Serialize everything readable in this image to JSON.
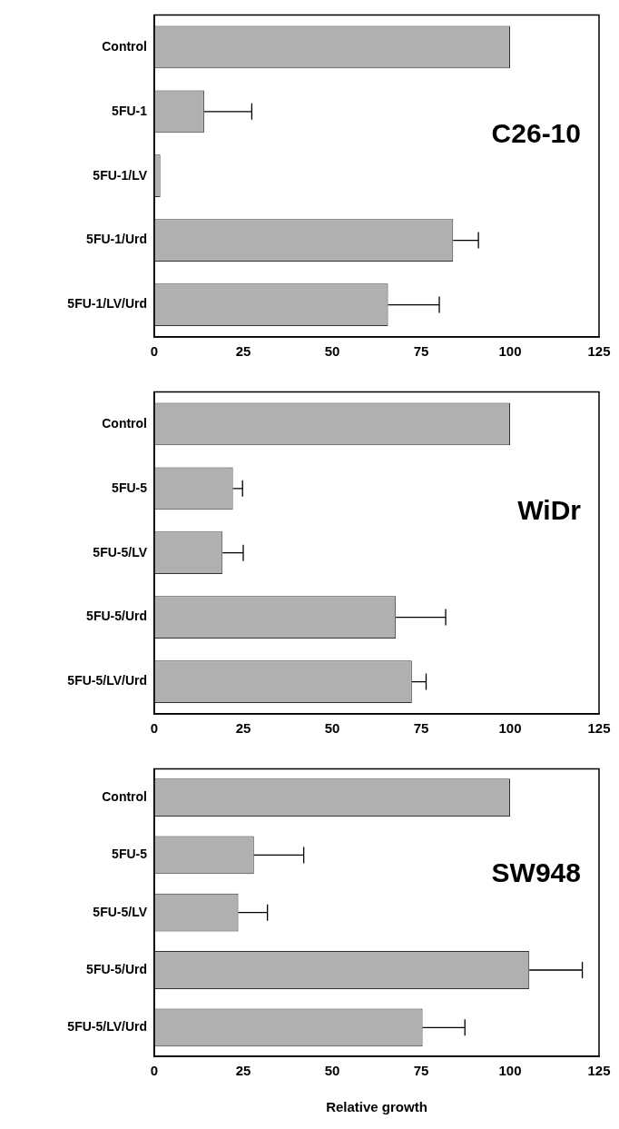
{
  "chart_data": [
    {
      "type": "bar",
      "orientation": "horizontal",
      "title": "C26-10",
      "categories": [
        "Control",
        "5FU-1",
        "5FU-1/LV",
        "5FU-1/Urd",
        "5FU-1/LV/Urd"
      ],
      "values": [
        100,
        14,
        1.7,
        84,
        65.7
      ],
      "errors": [
        null,
        [
          14,
          27.4
        ],
        null,
        [
          84,
          91.1
        ],
        [
          65.7,
          80.1
        ]
      ],
      "color": "#b0b0b0",
      "xlim": [
        0,
        125
      ],
      "xticks": [
        0,
        25,
        50,
        75,
        100,
        125
      ],
      "grid": false,
      "legend": false
    },
    {
      "type": "bar",
      "orientation": "horizontal",
      "title": "WiDr",
      "categories": [
        "Control",
        "5FU-5",
        "5FU-5/LV",
        "5FU-5/Urd",
        "5FU-5/LV/Urd"
      ],
      "values": [
        100,
        22.1,
        19.2,
        67.9,
        72.4
      ],
      "errors": [
        null,
        [
          22.1,
          24.8
        ],
        [
          19.2,
          25
        ],
        [
          67.9,
          81.9
        ],
        [
          72.4,
          76.4
        ]
      ],
      "color": "#b0b0b0",
      "xlim": [
        0,
        125
      ],
      "xticks": [
        0,
        25,
        50,
        75,
        100,
        125
      ],
      "grid": false,
      "legend": false
    },
    {
      "type": "bar",
      "orientation": "horizontal",
      "title": "SW948",
      "xlabel": "Relative growth",
      "categories": [
        "Control",
        "5FU-5",
        "5FU-5/LV",
        "5FU-5/Urd",
        "5FU-5/LV/Urd"
      ],
      "values": [
        100,
        28,
        23.6,
        105.4,
        75.4
      ],
      "errors": [
        null,
        [
          28,
          42
        ],
        [
          23.6,
          31.8
        ],
        [
          105.4,
          120.3
        ],
        [
          75.4,
          87.3
        ]
      ],
      "color": "#b0b0b0",
      "xlim": [
        0,
        125
      ],
      "xticks": [
        0,
        25,
        50,
        75,
        100,
        125
      ],
      "grid": false,
      "legend": false
    }
  ]
}
